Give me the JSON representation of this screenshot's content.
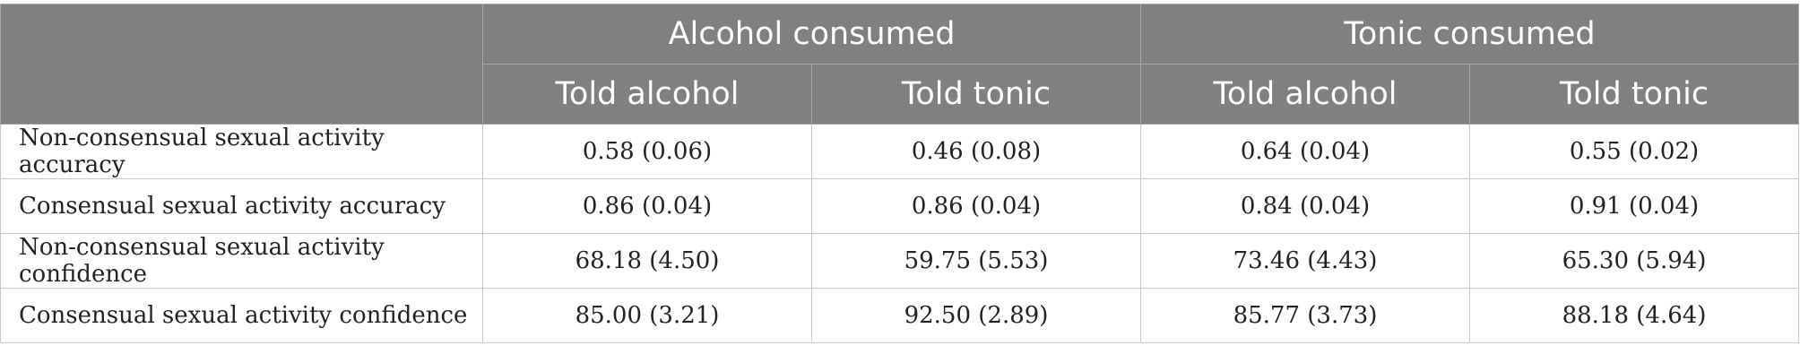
{
  "table": {
    "groups": [
      {
        "label": "Alcohol consumed",
        "columns": [
          "Told alcohol",
          "Told tonic"
        ]
      },
      {
        "label": "Tonic consumed",
        "columns": [
          "Told alcohol",
          "Told tonic"
        ]
      }
    ],
    "rows": [
      {
        "label": "Non-consensual sexual activity accuracy",
        "values": [
          "0.58 (0.06)",
          "0.46 (0.08)",
          "0.64 (0.04)",
          "0.55 (0.02)"
        ]
      },
      {
        "label": "Consensual sexual activity accuracy",
        "values": [
          "0.86 (0.04)",
          "0.86 (0.04)",
          "0.84 (0.04)",
          "0.91 (0.04)"
        ]
      },
      {
        "label": "Non-consensual sexual activity confidence",
        "values": [
          "68.18 (4.50)",
          "59.75 (5.53)",
          "73.46 (4.43)",
          "65.30 (5.94)"
        ]
      },
      {
        "label": "Consensual sexual activity confidence",
        "values": [
          "85.00 (3.21)",
          "92.50 (2.89)",
          "85.77 (3.73)",
          "88.18 (4.64)"
        ]
      }
    ],
    "colors": {
      "header_background": "#808080",
      "header_text": "#ffffff",
      "grid_line": "#c8c8c8",
      "body_text": "#222222"
    }
  }
}
